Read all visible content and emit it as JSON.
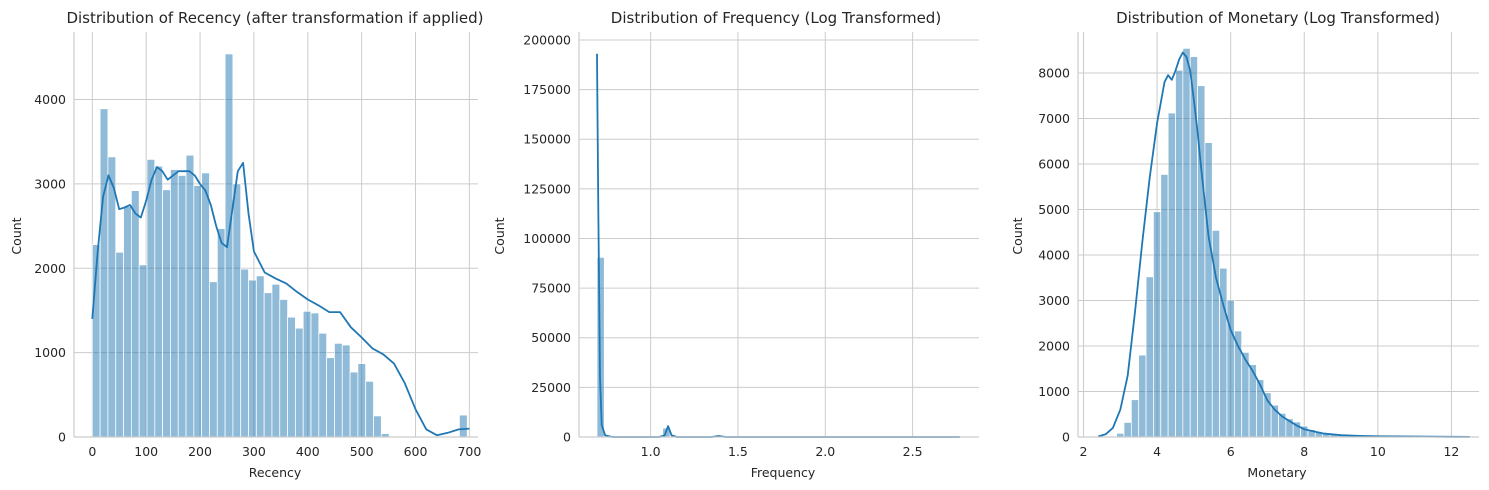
{
  "chart_data": [
    {
      "type": "bar",
      "subtype": "histogram-with-kde",
      "title": "Distribution of Recency (after transformation if applied)",
      "xlabel": "Recency",
      "ylabel": "Count",
      "xlim": [
        -34,
        716
      ],
      "ylim": [
        0,
        4800
      ],
      "xticks": [
        0,
        100,
        200,
        300,
        400,
        500,
        600,
        700
      ],
      "yticks": [
        0,
        1000,
        2000,
        3000,
        4000
      ],
      "grid": true,
      "color": "#1f77b4",
      "bins": {
        "start": 0,
        "width": 14.5,
        "counts": [
          2280,
          3890,
          3320,
          2190,
          2730,
          2920,
          2040,
          3290,
          3210,
          2930,
          3170,
          3100,
          3340,
          2980,
          3130,
          1840,
          2470,
          4540,
          3000,
          1990,
          1860,
          1910,
          1710,
          1810,
          1630,
          1420,
          1290,
          1490,
          1470,
          1230,
          940,
          1110,
          1090,
          770,
          870,
          660,
          250,
          40,
          0,
          0,
          0,
          0,
          0,
          0,
          0,
          0,
          0,
          260
        ]
      },
      "kde": {
        "x": [
          0,
          10,
          20,
          30,
          40,
          50,
          60,
          70,
          80,
          90,
          100,
          110,
          120,
          130,
          140,
          150,
          160,
          170,
          180,
          190,
          200,
          210,
          220,
          230,
          240,
          250,
          260,
          270,
          280,
          290,
          300,
          320,
          340,
          360,
          380,
          400,
          420,
          440,
          460,
          480,
          500,
          520,
          540,
          560,
          580,
          600,
          620,
          640,
          660,
          680,
          700
        ],
        "y": [
          1400,
          2200,
          2850,
          3100,
          2950,
          2700,
          2720,
          2750,
          2650,
          2600,
          2800,
          3050,
          3200,
          3150,
          3050,
          3100,
          3150,
          3150,
          3150,
          3100,
          3000,
          2920,
          2750,
          2500,
          2300,
          2250,
          2700,
          3150,
          3250,
          2650,
          2200,
          1950,
          1880,
          1820,
          1720,
          1630,
          1560,
          1480,
          1480,
          1300,
          1180,
          1050,
          980,
          870,
          640,
          330,
          90,
          20,
          50,
          90,
          100
        ]
      }
    },
    {
      "type": "bar",
      "subtype": "histogram-with-kde",
      "title": "Distribution of Frequency (Log Transformed)",
      "xlabel": "Frequency",
      "ylabel": "Count",
      "xlim": [
        0.59,
        2.88
      ],
      "ylim": [
        0,
        204000
      ],
      "xticks": [
        "1.0",
        "1.5",
        "2.0",
        "2.5"
      ],
      "xtick_values": [
        1.0,
        1.5,
        2.0,
        2.5
      ],
      "yticks": [
        0,
        25000,
        50000,
        75000,
        100000,
        125000,
        150000,
        175000,
        200000
      ],
      "grid": true,
      "color": "#1f77b4",
      "bins": {
        "start": 0.693,
        "width": 0.0418,
        "counts": [
          90500,
          0,
          0,
          0,
          0,
          0,
          0,
          0,
          0,
          4500,
          0,
          0,
          0,
          0,
          0,
          0,
          0,
          0,
          0,
          0,
          0,
          0,
          0,
          0,
          0,
          0,
          0,
          0,
          0,
          0,
          0,
          0,
          0,
          0,
          0,
          0,
          0,
          0,
          0,
          0,
          0,
          0,
          0,
          0,
          0,
          0,
          0,
          0,
          0,
          0
        ]
      },
      "kde": {
        "x": [
          0.693,
          0.7,
          0.71,
          0.72,
          0.74,
          0.78,
          0.85,
          0.95,
          1.05,
          1.08,
          1.1,
          1.12,
          1.15,
          1.25,
          1.35,
          1.39,
          1.43,
          1.6,
          2.0,
          2.5,
          2.77
        ],
        "y": [
          193000,
          120000,
          30000,
          6000,
          800,
          0,
          0,
          0,
          0,
          800,
          5500,
          800,
          0,
          0,
          0,
          500,
          0,
          0,
          0,
          0,
          0
        ]
      }
    },
    {
      "type": "bar",
      "subtype": "histogram-with-kde",
      "title": "Distribution of Monetary (Log Transformed)",
      "xlabel": "Monetary",
      "ylabel": "Count",
      "xlim": [
        1.85,
        12.75
      ],
      "ylim": [
        0,
        8900
      ],
      "xticks": [
        2,
        4,
        6,
        8,
        10,
        12
      ],
      "yticks": [
        0,
        1000,
        2000,
        3000,
        4000,
        5000,
        6000,
        7000,
        8000
      ],
      "grid": true,
      "color": "#1f77b4",
      "bins": {
        "start": 2.3,
        "width": 0.2,
        "counts": [
          0,
          0,
          0,
          80,
          320,
          820,
          1800,
          3520,
          4950,
          5770,
          7120,
          8060,
          8540,
          8360,
          7720,
          6470,
          4540,
          3710,
          3010,
          2330,
          1860,
          1590,
          1260,
          970,
          700,
          520,
          400,
          330,
          240,
          160,
          120,
          80,
          60,
          40,
          30,
          20,
          15,
          10,
          10,
          5,
          5,
          5,
          5,
          0,
          0,
          0,
          0,
          0,
          0,
          0,
          0
        ]
      },
      "kde": {
        "x": [
          2.4,
          2.6,
          2.8,
          3.0,
          3.2,
          3.4,
          3.6,
          3.8,
          4.0,
          4.2,
          4.3,
          4.4,
          4.5,
          4.6,
          4.7,
          4.8,
          4.9,
          5.0,
          5.1,
          5.2,
          5.4,
          5.6,
          5.8,
          6.0,
          6.2,
          6.4,
          6.6,
          6.8,
          7.0,
          7.2,
          7.4,
          7.6,
          7.8,
          8.0,
          8.5,
          9.0,
          9.5,
          10.0,
          11.0,
          12.0,
          12.5
        ],
        "y": [
          10,
          60,
          200,
          600,
          1350,
          2750,
          4300,
          5700,
          6900,
          7800,
          7950,
          7850,
          8050,
          8300,
          8450,
          8350,
          8050,
          7400,
          6700,
          5900,
          4400,
          3500,
          2900,
          2350,
          2000,
          1700,
          1450,
          1150,
          800,
          600,
          450,
          350,
          250,
          170,
          80,
          40,
          25,
          15,
          10,
          5,
          3
        ]
      }
    }
  ]
}
